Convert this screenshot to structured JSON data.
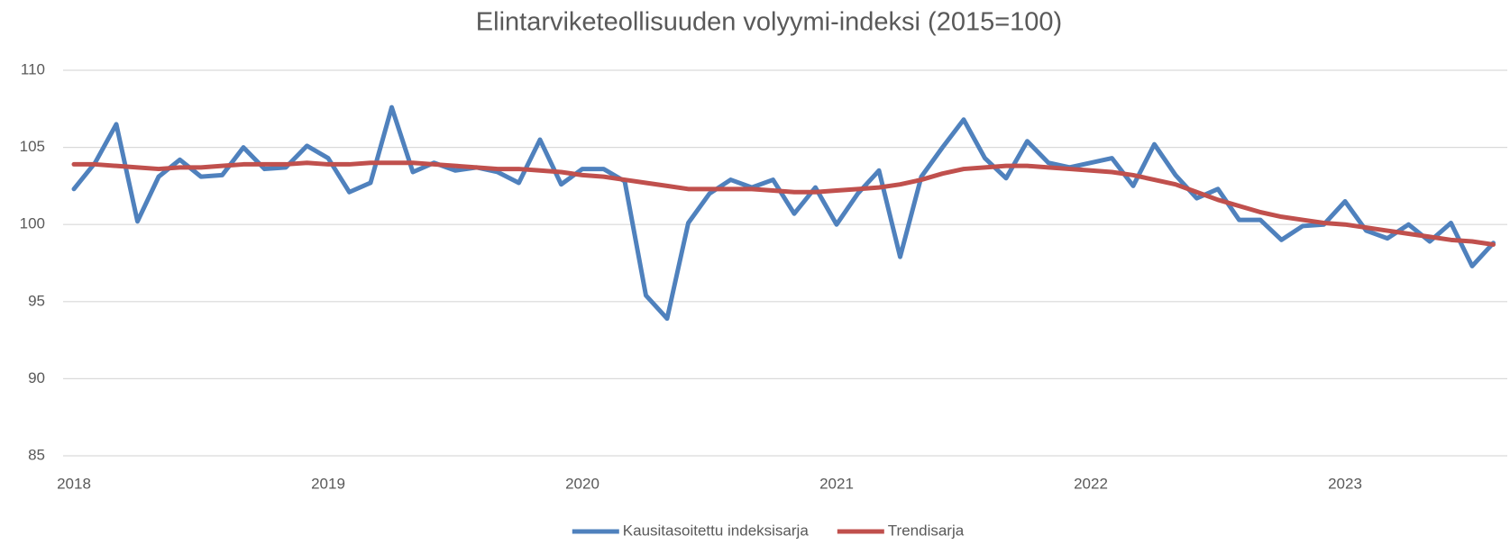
{
  "chart_data": {
    "type": "line",
    "title": "Elintarviketeollisuuden volyymi-indeksi (2015=100)",
    "categories": [
      "2018",
      null,
      null,
      null,
      null,
      null,
      null,
      null,
      null,
      null,
      null,
      null,
      "2019",
      null,
      null,
      null,
      null,
      null,
      null,
      null,
      null,
      null,
      null,
      null,
      "2020",
      null,
      null,
      null,
      null,
      null,
      null,
      null,
      null,
      null,
      null,
      null,
      "2021",
      null,
      null,
      null,
      null,
      null,
      null,
      null,
      null,
      null,
      null,
      null,
      "2022",
      null,
      null,
      null,
      null,
      null,
      null,
      null,
      null,
      null,
      null,
      null,
      "2023",
      null,
      null,
      null,
      null,
      null,
      null,
      null
    ],
    "series": [
      {
        "name": "Kausitasoitettu indeksisarja",
        "color": "#4f81bd",
        "values": [
          102.3,
          104.0,
          106.5,
          100.2,
          103.1,
          104.2,
          103.1,
          103.2,
          105.0,
          103.6,
          103.7,
          105.1,
          104.3,
          102.1,
          102.7,
          107.6,
          103.4,
          104.0,
          103.5,
          103.7,
          103.4,
          102.7,
          105.5,
          102.6,
          103.6,
          103.6,
          102.8,
          95.4,
          93.9,
          100.1,
          102.0,
          102.9,
          102.4,
          102.9,
          100.7,
          102.4,
          100.0,
          102.0,
          103.5,
          97.9,
          103.1,
          105.0,
          106.8,
          104.3,
          103.0,
          105.4,
          104.0,
          103.7,
          104.0,
          104.3,
          102.5,
          105.2,
          103.2,
          101.7,
          102.3,
          100.3,
          100.3,
          99.0,
          99.9,
          100.0,
          101.5,
          99.6,
          99.1,
          100.0,
          98.9,
          100.1,
          97.3,
          98.8
        ]
      },
      {
        "name": "Trendisarja",
        "color": "#c0504d",
        "values": [
          103.9,
          103.9,
          103.8,
          103.7,
          103.6,
          103.7,
          103.7,
          103.8,
          103.9,
          103.9,
          103.9,
          104.0,
          103.9,
          103.9,
          104.0,
          104.0,
          104.0,
          103.9,
          103.8,
          103.7,
          103.6,
          103.6,
          103.5,
          103.4,
          103.2,
          103.1,
          102.9,
          102.7,
          102.5,
          102.3,
          102.3,
          102.3,
          102.3,
          102.2,
          102.1,
          102.1,
          102.2,
          102.3,
          102.4,
          102.6,
          102.9,
          103.3,
          103.6,
          103.7,
          103.8,
          103.8,
          103.7,
          103.6,
          103.5,
          103.4,
          103.2,
          102.9,
          102.6,
          102.1,
          101.6,
          101.2,
          100.8,
          100.5,
          100.3,
          100.1,
          100.0,
          99.8,
          99.6,
          99.4,
          99.2,
          99.0,
          98.9,
          98.7
        ]
      }
    ],
    "ylim": [
      85,
      110
    ],
    "yticks": [
      85,
      90,
      95,
      100,
      105,
      110
    ],
    "grid": true,
    "legend": "bottom"
  }
}
